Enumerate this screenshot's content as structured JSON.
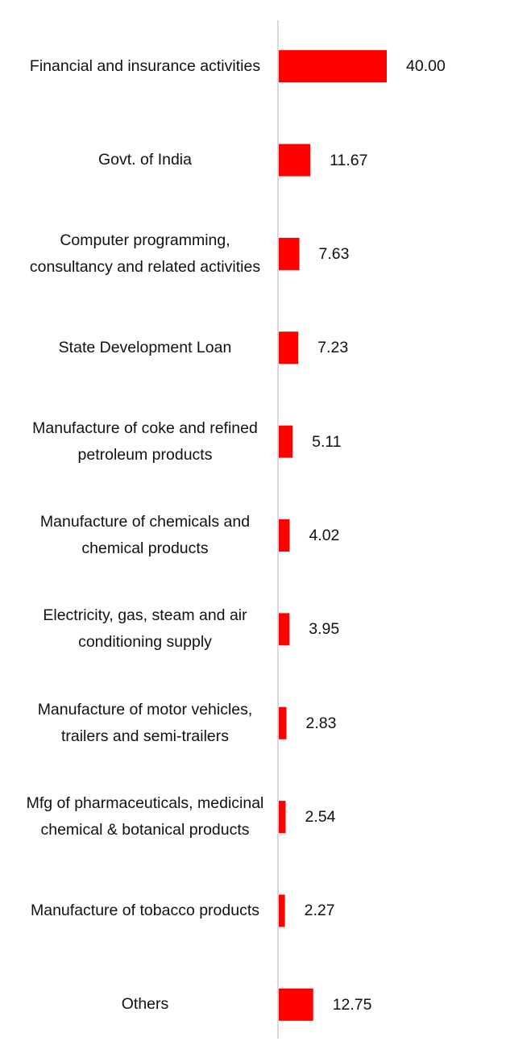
{
  "chart_data": {
    "type": "bar",
    "orientation": "horizontal",
    "categories": [
      "Financial and insurance activities",
      "Govt. of India",
      "Computer programming, consultancy and related activities",
      "State Development Loan",
      "Manufacture of coke and refined petroleum products",
      "Manufacture of chemicals and chemical products",
      "Electricity, gas, steam and air conditioning supply",
      "Manufacture of motor vehicles, trailers and semi-trailers",
      "Mfg of pharmaceuticals, medicinal chemical & botanical products",
      "Manufacture of tobacco products",
      "Others"
    ],
    "values": [
      40,
      11.67,
      7.63,
      7.23,
      5.11,
      4.02,
      3.95,
      2.83,
      2.54,
      2.27,
      12.75
    ],
    "value_labels": [
      "40.00",
      "11.67",
      "7.63",
      "7.23",
      "5.11",
      "4.02",
      "3.95",
      "2.83",
      "2.54",
      "2.27",
      "12.75"
    ],
    "color": "#ff0000",
    "xlim": [
      0,
      80
    ]
  }
}
